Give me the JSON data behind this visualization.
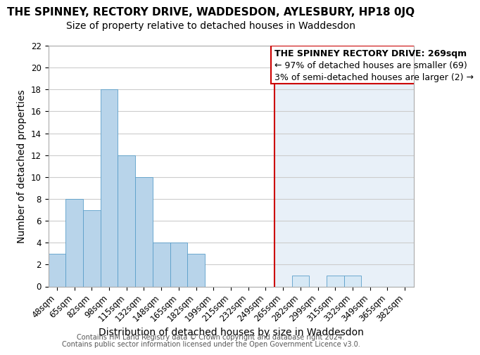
{
  "title_line1": "THE SPINNEY, RECTORY DRIVE, WADDESDON, AYLESBURY, HP18 0JQ",
  "title_line2": "Size of property relative to detached houses in Waddesdon",
  "xlabel": "Distribution of detached houses by size in Waddesdon",
  "ylabel": "Number of detached properties",
  "footer1": "Contains HM Land Registry data © Crown copyright and database right 2024.",
  "footer2": "Contains public sector information licensed under the Open Government Licence v3.0.",
  "categories": [
    "48sqm",
    "65sqm",
    "82sqm",
    "98sqm",
    "115sqm",
    "132sqm",
    "148sqm",
    "165sqm",
    "182sqm",
    "199sqm",
    "215sqm",
    "232sqm",
    "249sqm",
    "265sqm",
    "282sqm",
    "299sqm",
    "315sqm",
    "332sqm",
    "349sqm",
    "365sqm",
    "382sqm"
  ],
  "values": [
    3,
    8,
    7,
    18,
    12,
    10,
    4,
    4,
    3,
    0,
    0,
    0,
    0,
    0,
    1,
    0,
    1,
    1,
    0,
    0,
    0
  ],
  "bar_color_normal": "#b8d4ea",
  "bar_color_highlight": "#d6e8f5",
  "highlight_index": 13,
  "vline_color": "#cc0000",
  "ylim": [
    0,
    22
  ],
  "yticks": [
    0,
    2,
    4,
    6,
    8,
    10,
    12,
    14,
    16,
    18,
    20,
    22
  ],
  "annotation_lines": [
    "THE SPINNEY RECTORY DRIVE: 269sqm",
    "← 97% of detached houses are smaller (69)",
    "3% of semi-detached houses are larger (2) →"
  ],
  "annotation_box_facecolor": "#ffffff",
  "annotation_box_edgecolor": "#cc0000",
  "bg_color": "#e8f0f8",
  "bg_left_color": "#ffffff",
  "grid_color": "#cccccc",
  "title_fontsize": 11,
  "subtitle_fontsize": 10,
  "axis_label_fontsize": 10,
  "tick_fontsize": 8.5,
  "annotation_fontsize": 9
}
